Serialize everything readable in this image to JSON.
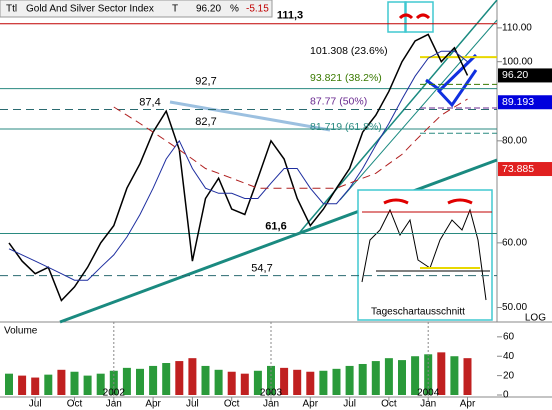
{
  "chart_data": {
    "type": "line",
    "title": "Gold And Silver Sector Index",
    "header": {
      "ttl": "Ttl",
      "t": "T",
      "last": "96.20",
      "pct": "%",
      "change": "-5.15"
    },
    "log_scale": true,
    "x": [
      "2001-05",
      "2001-06",
      "2001-07",
      "2001-08",
      "2001-09",
      "2001-10",
      "2001-11",
      "2001-12",
      "2002-01",
      "2002-02",
      "2002-03",
      "2002-04",
      "2002-05",
      "2002-06",
      "2002-07",
      "2002-08",
      "2002-09",
      "2002-10",
      "2002-11",
      "2002-12",
      "2003-01",
      "2003-02",
      "2003-03",
      "2003-04",
      "2003-05",
      "2003-06",
      "2003-07",
      "2003-08",
      "2003-09",
      "2003-10",
      "2003-11",
      "2003-12",
      "2004-01",
      "2004-02",
      "2004-03",
      "2004-04"
    ],
    "series": [
      {
        "name": "Index",
        "color": "#000000",
        "dash": false,
        "values": [
          60,
          57,
          55,
          56,
          51,
          53,
          56,
          60,
          63,
          70,
          75,
          82,
          87,
          78,
          57,
          68,
          72,
          66,
          65,
          72,
          80,
          76,
          68,
          63,
          66,
          70,
          74,
          82,
          86,
          92,
          100,
          106,
          108,
          100,
          104,
          96.2
        ]
      },
      {
        "name": "MA 50",
        "color": "#1f2fa0",
        "dash": false,
        "values": [
          59,
          58,
          57,
          56,
          55,
          54,
          54,
          56,
          58,
          61,
          65,
          70,
          76,
          80,
          74,
          70,
          69,
          69,
          68,
          68,
          71,
          74,
          74,
          70,
          67,
          67,
          70,
          74,
          79,
          84,
          90,
          96,
          101,
          103,
          103,
          100
        ]
      },
      {
        "name": "MA 200",
        "color": "#b02020",
        "dash": true,
        "values": [
          null,
          null,
          null,
          null,
          null,
          null,
          null,
          null,
          88,
          86,
          84,
          82,
          80,
          78,
          76,
          74,
          73,
          72,
          71,
          70,
          70,
          70,
          70,
          70,
          70,
          70,
          71,
          72,
          73,
          75,
          77,
          80,
          83,
          86,
          88,
          90
        ]
      }
    ],
    "ylim": [
      48,
      119
    ],
    "yticks": [
      {
        "value": 50,
        "label": "50.00"
      },
      {
        "value": 60,
        "label": "60.00"
      },
      {
        "value": 80,
        "label": "80.00"
      },
      {
        "value": 100,
        "label": "100.00"
      },
      {
        "value": 110,
        "label": "110.00"
      }
    ],
    "scale_label": "LOG",
    "price_tags": [
      {
        "value": 96.2,
        "label": "96.20",
        "color": "#000000"
      },
      {
        "value": 89.193,
        "label": "89.193",
        "color": "#0000dd"
      },
      {
        "value": 73.885,
        "label": "73.885",
        "color": "#e02020"
      }
    ],
    "levels": [
      {
        "value": 111.3,
        "label": "111,3",
        "color": "#c00000",
        "dash": false
      },
      {
        "value": 92.7,
        "label": "92,7",
        "color": "#2a8a80",
        "dash": false
      },
      {
        "value": 87.4,
        "label": "87,4",
        "color": "#2a6a70",
        "dash": true
      },
      {
        "value": 82.7,
        "label": "82,7",
        "color": "#2a8a80",
        "dash": false
      },
      {
        "value": 61.6,
        "label": "61,6",
        "color": "#2a8a80",
        "dash": false
      },
      {
        "value": 54.7,
        "label": "54,7",
        "color": "#2a6a70",
        "dash": true
      }
    ],
    "fib_levels": [
      {
        "value": 101.308,
        "label": "101.308 (23.6%)",
        "color": "#000000"
      },
      {
        "value": 93.821,
        "label": "93.821 (38.2%)",
        "color": "#3a7a00"
      },
      {
        "value": 87.77,
        "label": "87.77 (50%)",
        "color": "#6a2a90"
      },
      {
        "value": 81.719,
        "label": "81.719 (61.8%)",
        "color": "#2a8a80"
      }
    ],
    "inset_label": "Tageschartausschnitt",
    "volume": {
      "label": "Volume",
      "values": [
        22,
        20,
        18,
        21,
        26,
        24,
        20,
        22,
        25,
        28,
        27,
        30,
        33,
        35,
        38,
        30,
        26,
        24,
        22,
        25,
        30,
        28,
        26,
        24,
        25,
        27,
        30,
        32,
        35,
        38,
        36,
        40,
        42,
        44,
        40,
        38
      ],
      "ylim": [
        0,
        65
      ],
      "yticks": [
        0,
        20,
        40,
        60
      ]
    },
    "xticks": [
      {
        "value": "2001-07",
        "label": "Jul"
      },
      {
        "value": "2001-10",
        "label": "Oct"
      },
      {
        "value": "2002-01",
        "label": "Jan"
      },
      {
        "value": "2002-04",
        "label": "Apr"
      },
      {
        "value": "2002-07",
        "label": "Jul"
      },
      {
        "value": "2002-10",
        "label": "Oct"
      },
      {
        "value": "2003-01",
        "label": "Jan"
      },
      {
        "value": "2003-04",
        "label": "Apr"
      },
      {
        "value": "2003-07",
        "label": "Jul"
      },
      {
        "value": "2003-10",
        "label": "Oct"
      },
      {
        "value": "2004-01",
        "label": "Jan"
      },
      {
        "value": "2004-04",
        "label": "Apr"
      }
    ],
    "year_ticks": [
      {
        "value": "2002-01",
        "label": "2002"
      },
      {
        "value": "2003-01",
        "label": "2003"
      },
      {
        "value": "2004-01",
        "label": "2004"
      }
    ]
  }
}
